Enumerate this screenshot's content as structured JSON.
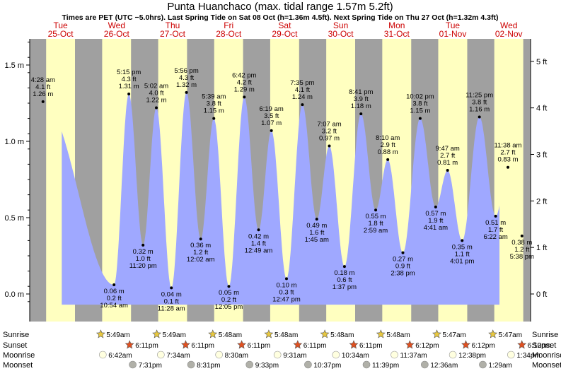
{
  "title": "Punta Huanchaco (max. tidal range 1.57m 5.2ft)",
  "subtitle": "Times are PET (UTC −5.0hrs). Last Spring Tide on Sat 08 Oct (h=1.36m 4.5ft). Next Spring Tide on Thu 27 Oct (h=1.32m 4.3ft)",
  "colors": {
    "day": "#ffffc0",
    "night": "#a0a0a0",
    "tide_fill": "#9fa8ff",
    "day_label": "#cc0000"
  },
  "chart_data": {
    "type": "area",
    "x_unit": "hours since Tue 25-Oct 00:00",
    "y_unit": "m",
    "ylim": [
      -0.07,
      1.72
    ],
    "y_ticks_m": [
      0.0,
      0.5,
      1.0,
      1.5
    ],
    "y_tick_labels_m": [
      "0.0 m",
      "0.5 m",
      "1.0 m",
      "1.5 m"
    ],
    "y_ticks_ft": [
      0,
      1,
      2,
      3,
      4,
      5
    ],
    "y_tick_labels_ft": [
      "0 ft",
      "1 ft",
      "2 ft",
      "3 ft",
      "4 ft",
      "5 ft"
    ],
    "start_hour": 12.5,
    "end_hour": 200,
    "days": [
      {
        "dow": "Tue",
        "date": "25-Oct"
      },
      {
        "dow": "Wed",
        "date": "26-Oct"
      },
      {
        "dow": "Thu",
        "date": "27-Oct"
      },
      {
        "dow": "Fri",
        "date": "28-Oct"
      },
      {
        "dow": "Sat",
        "date": "29-Oct"
      },
      {
        "dow": "Sun",
        "date": "30-Oct"
      },
      {
        "dow": "Mon",
        "date": "31-Oct"
      },
      {
        "dow": "Tue",
        "date": "01-Nov"
      },
      {
        "dow": "Wed",
        "date": "02-Nov"
      }
    ],
    "daylight": [
      {
        "rise": "5:49am",
        "set": "6:11pm"
      },
      {
        "rise": "5:49am",
        "set": "6:11pm"
      },
      {
        "rise": "5:49am",
        "set": "6:11pm"
      },
      {
        "rise": "5:48am",
        "set": "6:11pm"
      },
      {
        "rise": "5:48am",
        "set": "6:11pm"
      },
      {
        "rise": "5:48am",
        "set": "6:11pm"
      },
      {
        "rise": "5:48am",
        "set": "6:12pm"
      },
      {
        "rise": "5:47am",
        "set": "6:12pm"
      },
      {
        "rise": "5:47am",
        "set": "6:12pm"
      }
    ],
    "tides": [
      {
        "day": 0,
        "time": "4:28 am",
        "ft": "4.1 ft",
        "m": 1.26,
        "label": "1.26 m",
        "type": "high"
      },
      {
        "day": 1,
        "time": "10:54 am",
        "ft": "0.2 ft",
        "m": 0.06,
        "label": "0.06 m",
        "type": "low"
      },
      {
        "day": 1,
        "time": "5:15 pm",
        "ft": "4.3 ft",
        "m": 1.31,
        "label": "1.31 m",
        "type": "high"
      },
      {
        "day": 1,
        "time": "11:20 pm",
        "ft": "1.0 ft",
        "m": 0.32,
        "label": "0.32 m",
        "type": "low"
      },
      {
        "day": 2,
        "time": "5:02 am",
        "ft": "4.0 ft",
        "m": 1.22,
        "label": "1.22 m",
        "type": "high"
      },
      {
        "day": 2,
        "time": "11:28 am",
        "ft": "0.1 ft",
        "m": 0.04,
        "label": "0.04 m",
        "type": "low"
      },
      {
        "day": 2,
        "time": "5:56 pm",
        "ft": "4.3 ft",
        "m": 1.32,
        "label": "1.32 m",
        "type": "high"
      },
      {
        "day": 3,
        "time": "12:02 am",
        "ft": "1.2 ft",
        "m": 0.36,
        "label": "0.36 m",
        "type": "low"
      },
      {
        "day": 3,
        "time": "5:39 am",
        "ft": "3.8 ft",
        "m": 1.15,
        "label": "1.15 m",
        "type": "high"
      },
      {
        "day": 3,
        "time": "12:05 pm",
        "ft": "0.2 ft",
        "m": 0.05,
        "label": "0.05 m",
        "type": "low"
      },
      {
        "day": 3,
        "time": "6:42 pm",
        "ft": "4.2 ft",
        "m": 1.29,
        "label": "1.29 m",
        "type": "high"
      },
      {
        "day": 4,
        "time": "12:49 am",
        "ft": "1.4 ft",
        "m": 0.42,
        "label": "0.42 m",
        "type": "low"
      },
      {
        "day": 4,
        "time": "6:19 am",
        "ft": "3.5 ft",
        "m": 1.07,
        "label": "1.07 m",
        "type": "high"
      },
      {
        "day": 4,
        "time": "12:47 pm",
        "ft": "0.3 ft",
        "m": 0.1,
        "label": "0.10 m",
        "type": "low"
      },
      {
        "day": 4,
        "time": "7:35 pm",
        "ft": "4.1 ft",
        "m": 1.24,
        "label": "1.24 m",
        "type": "high"
      },
      {
        "day": 5,
        "time": "1:45 am",
        "ft": "1.6 ft",
        "m": 0.49,
        "label": "0.49 m",
        "type": "low"
      },
      {
        "day": 5,
        "time": "7:07 am",
        "ft": "3.2 ft",
        "m": 0.97,
        "label": "0.97 m",
        "type": "high"
      },
      {
        "day": 5,
        "time": "1:37 pm",
        "ft": "0.6 ft",
        "m": 0.18,
        "label": "0.18 m",
        "type": "low"
      },
      {
        "day": 5,
        "time": "8:41 pm",
        "ft": "3.9 ft",
        "m": 1.18,
        "label": "1.18 m",
        "type": "high"
      },
      {
        "day": 6,
        "time": "2:59 am",
        "ft": "1.8 ft",
        "m": 0.55,
        "label": "0.55 m",
        "type": "low"
      },
      {
        "day": 6,
        "time": "8:10 am",
        "ft": "2.9 ft",
        "m": 0.88,
        "label": "0.88 m",
        "type": "high"
      },
      {
        "day": 6,
        "time": "2:38 pm",
        "ft": "0.9 ft",
        "m": 0.27,
        "label": "0.27 m",
        "type": "low"
      },
      {
        "day": 6,
        "time": "10:02 pm",
        "ft": "3.8 ft",
        "m": 1.15,
        "label": "1.15 m",
        "type": "high"
      },
      {
        "day": 7,
        "time": "4:41 am",
        "ft": "1.9 ft",
        "m": 0.57,
        "label": "0.57 m",
        "type": "low"
      },
      {
        "day": 7,
        "time": "9:47 am",
        "ft": "2.7 ft",
        "m": 0.81,
        "label": "0.81 m",
        "type": "high"
      },
      {
        "day": 7,
        "time": "4:01 pm",
        "ft": "1.1 ft",
        "m": 0.35,
        "label": "0.35 m",
        "type": "low"
      },
      {
        "day": 7,
        "time": "11:25 pm",
        "ft": "3.8 ft",
        "m": 1.16,
        "label": "1.16 m",
        "type": "high"
      },
      {
        "day": 8,
        "time": "6:22 am",
        "ft": "1.7 ft",
        "m": 0.51,
        "label": "0.51 m",
        "type": "low"
      },
      {
        "day": 8,
        "time": "11:38 am",
        "ft": "2.7 ft",
        "m": 0.83,
        "label": "0.83 m",
        "type": "high"
      },
      {
        "day": 8,
        "time": "5:38 pm",
        "ft": "1.2 ft",
        "m": 0.38,
        "label": "0.38 m",
        "type": "low"
      }
    ],
    "start_level_m": 0.95,
    "end_level_m": 0.45,
    "bottom_rows": {
      "labels": {
        "sunrise": "Sunrise",
        "sunset": "Sunset",
        "moonrise": "Moonrise",
        "moonset": "Moonset"
      },
      "moonrise": [
        {
          "day": 1,
          "time": "6:42am"
        },
        {
          "day": 2,
          "time": "7:34am"
        },
        {
          "day": 3,
          "time": "8:30am"
        },
        {
          "day": 4,
          "time": "9:31am"
        },
        {
          "day": 5,
          "time": "10:34am"
        },
        {
          "day": 6,
          "time": "11:37am"
        },
        {
          "day": 7,
          "time": "12:38pm"
        },
        {
          "day": 8,
          "time": "1:34pm"
        }
      ],
      "moonset": [
        {
          "day": 1,
          "time": "7:31pm"
        },
        {
          "day": 2,
          "time": "8:31pm"
        },
        {
          "day": 3,
          "time": "9:33pm"
        },
        {
          "day": 4,
          "time": "10:37pm"
        },
        {
          "day": 5,
          "time": "11:39pm"
        },
        {
          "day": 7,
          "time": "12:36am"
        },
        {
          "day": 8,
          "time": "1:29am"
        }
      ]
    }
  }
}
